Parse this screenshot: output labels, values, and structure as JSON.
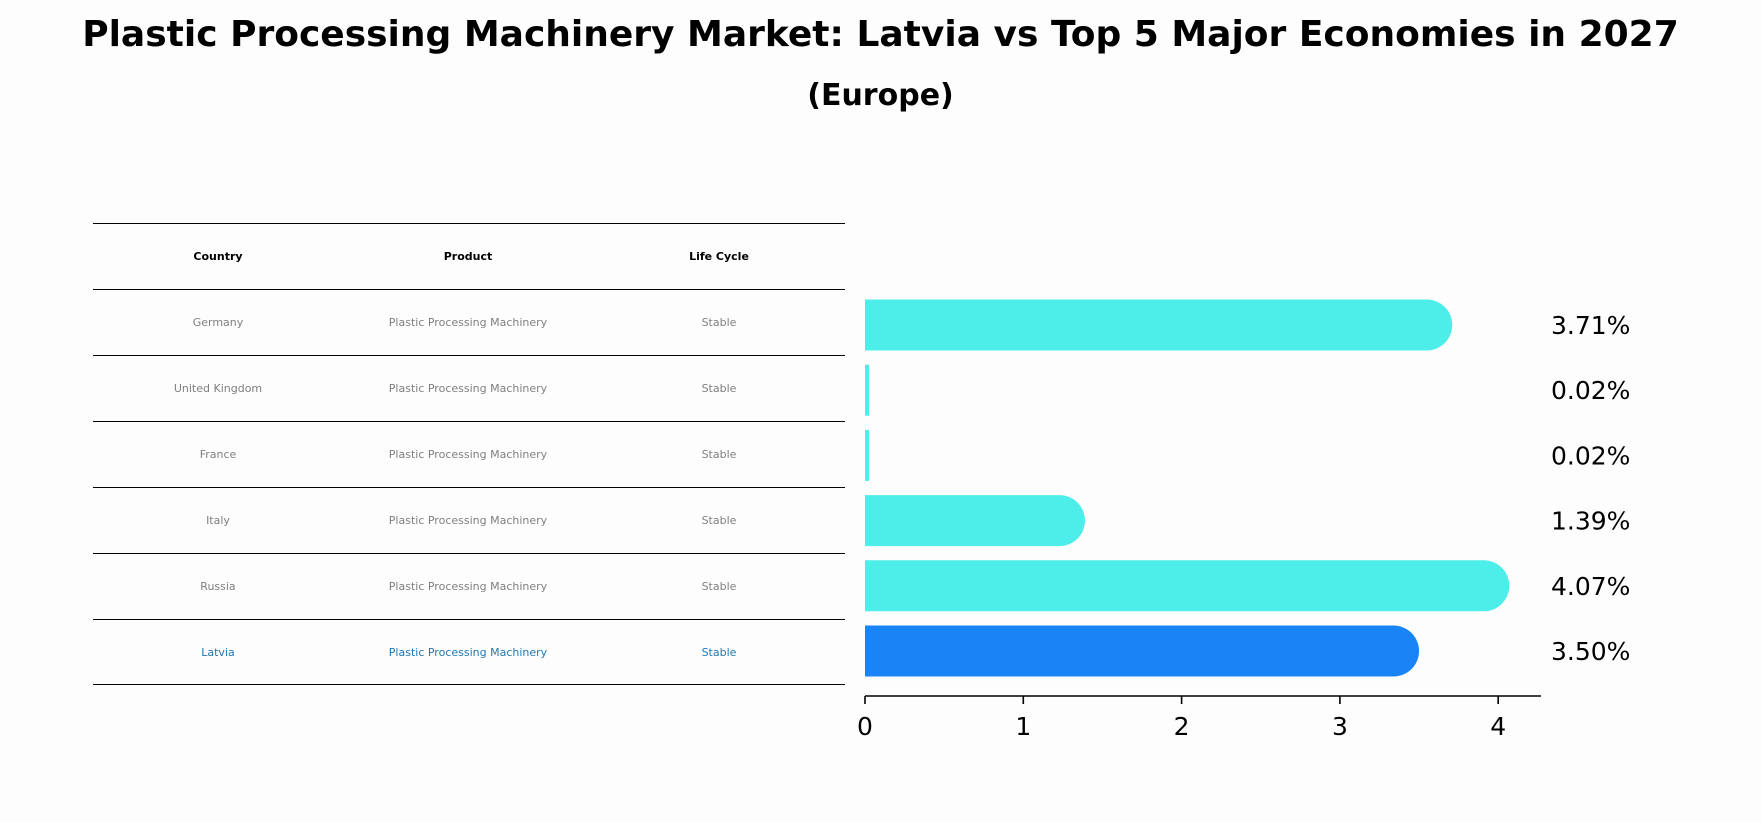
{
  "title": "Plastic Processing Machinery Market: Latvia vs Top 5 Major Economies in 2027",
  "subtitle": "(Europe)",
  "table": {
    "headers": [
      "Country",
      "Product",
      "Life Cycle"
    ],
    "rows": [
      [
        "Germany",
        "Plastic Processing Machinery",
        "Stable"
      ],
      [
        "United Kingdom",
        "Plastic Processing Machinery",
        "Stable"
      ],
      [
        "France",
        "Plastic Processing Machinery",
        "Stable"
      ],
      [
        "Italy",
        "Plastic Processing Machinery",
        "Stable"
      ],
      [
        "Russia",
        "Plastic Processing Machinery",
        "Stable"
      ],
      [
        "Latvia",
        "Plastic Processing Machinery",
        "Stable"
      ]
    ],
    "highlight_row": 5
  },
  "chart_data": {
    "type": "bar",
    "orientation": "horizontal",
    "categories": [
      "Germany",
      "United Kingdom",
      "France",
      "Italy",
      "Russia",
      "Latvia"
    ],
    "values": [
      3.71,
      0.02,
      0.02,
      1.39,
      4.07,
      3.5
    ],
    "value_labels": [
      "3.71%",
      "0.02%",
      "0.02%",
      "1.39%",
      "4.07%",
      "3.50%"
    ],
    "xlim": [
      0,
      4.27
    ],
    "xticks": [
      0,
      1,
      2,
      3,
      4
    ],
    "grid": false,
    "colors": {
      "default": "#4deeea",
      "highlight": "#1984f5"
    },
    "highlight_index": 5
  }
}
